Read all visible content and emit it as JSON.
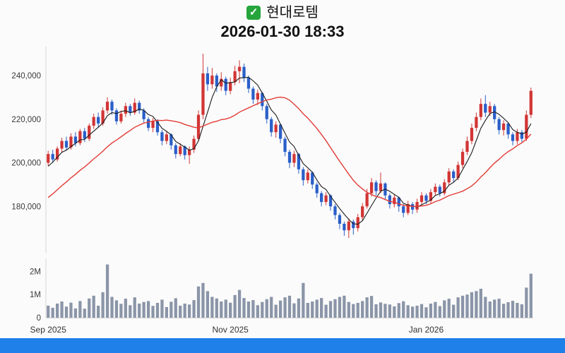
{
  "header": {
    "title": "현대로템",
    "datetime": "2026-01-30 18:33",
    "check_glyph": "✓"
  },
  "colors": {
    "candle_up": "#d23535",
    "candle_down": "#2a5fc9",
    "ma_short": "#1a1a1a",
    "ma_long": "#e23b35",
    "volume_bar": "#8b95a8",
    "axis_line": "#d6d6d6",
    "tick_text": "#3a3a3a",
    "bottom_bar": "#1e80e8",
    "background": "#fbfbfb"
  },
  "chart_data": {
    "type": "candlestick",
    "title": "현대로템",
    "subtitle": "2026-01-30 18:33",
    "y_ticks": [
      180000,
      200000,
      220000,
      240000
    ],
    "y_range": [
      160000,
      252000
    ],
    "x_axis_labels": [
      {
        "label": "Sep 2025",
        "index": 0
      },
      {
        "label": "Nov 2025",
        "index": 40
      },
      {
        "label": "Jan 2026",
        "index": 83
      }
    ],
    "volume_ticks": [
      {
        "label": "0",
        "value": 0
      },
      {
        "label": "1M",
        "value": 1000000
      },
      {
        "label": "2M",
        "value": 2000000
      }
    ],
    "volume_max": 2500000,
    "moving_averages": {
      "short_window": 5,
      "long_window": 20
    },
    "ma_short_seed_range": [
      192000,
      202000
    ],
    "ma_long_seed_range": [
      168000,
      198000
    ],
    "candles": [
      [
        200000,
        205500,
        198500,
        204000,
        520000
      ],
      [
        204000,
        206000,
        200000,
        201500,
        430000
      ],
      [
        201500,
        207500,
        200500,
        206500,
        610000
      ],
      [
        206500,
        211500,
        205000,
        210000,
        700000
      ],
      [
        210000,
        212000,
        205500,
        207000,
        480000
      ],
      [
        207000,
        213500,
        206000,
        212000,
        650000
      ],
      [
        212000,
        214000,
        207500,
        209000,
        400000
      ],
      [
        209000,
        215500,
        208000,
        214500,
        720000
      ],
      [
        214500,
        216000,
        209500,
        211000,
        390000
      ],
      [
        211000,
        218000,
        210000,
        217000,
        830000
      ],
      [
        217000,
        222500,
        215500,
        221000,
        950000
      ],
      [
        221000,
        223000,
        216000,
        218000,
        520000
      ],
      [
        218000,
        225500,
        217000,
        224000,
        1100000
      ],
      [
        224000,
        230000,
        222500,
        228000,
        2300000
      ],
      [
        228000,
        229000,
        222000,
        224000,
        900000
      ],
      [
        224000,
        225000,
        217500,
        219000,
        750000
      ],
      [
        219000,
        224000,
        218000,
        222500,
        600000
      ],
      [
        222500,
        227500,
        221000,
        226000,
        820000
      ],
      [
        226000,
        227000,
        221500,
        223000,
        540000
      ],
      [
        223000,
        229500,
        222000,
        227500,
        880000
      ],
      [
        227500,
        228500,
        222500,
        224000,
        610000
      ],
      [
        224000,
        225000,
        218500,
        220000,
        680000
      ],
      [
        220000,
        221000,
        214500,
        216000,
        720000
      ],
      [
        216000,
        220500,
        214000,
        219000,
        510000
      ],
      [
        219000,
        220000,
        212500,
        214000,
        640000
      ],
      [
        214000,
        215000,
        208000,
        210000,
        780000
      ],
      [
        210000,
        214500,
        208500,
        213000,
        460000
      ],
      [
        213000,
        213500,
        206000,
        208000,
        690000
      ],
      [
        208000,
        209000,
        202000,
        204000,
        840000
      ],
      [
        204000,
        209000,
        203000,
        207500,
        520000
      ],
      [
        207500,
        208000,
        201500,
        203500,
        610000
      ],
      [
        203500,
        207500,
        199500,
        206000,
        570000
      ],
      [
        206000,
        212500,
        204500,
        211000,
        760000
      ],
      [
        211000,
        224000,
        210000,
        222000,
        1350000
      ],
      [
        222000,
        250000,
        220000,
        241000,
        1500000
      ],
      [
        241000,
        244000,
        233000,
        236000,
        1150000
      ],
      [
        236000,
        243500,
        234000,
        240000,
        900000
      ],
      [
        240000,
        241000,
        232500,
        235000,
        830000
      ],
      [
        235000,
        241500,
        233000,
        238500,
        700000
      ],
      [
        238500,
        239500,
        231000,
        233000,
        780000
      ],
      [
        233000,
        239000,
        231500,
        237000,
        650000
      ],
      [
        237000,
        244500,
        235500,
        242000,
        980000
      ],
      [
        242000,
        247000,
        236500,
        244000,
        1200000
      ],
      [
        244000,
        245500,
        237000,
        239000,
        850000
      ],
      [
        239000,
        240000,
        232000,
        234000,
        700000
      ],
      [
        234000,
        235000,
        227000,
        229000,
        760000
      ],
      [
        229000,
        233500,
        226500,
        232000,
        540000
      ],
      [
        232000,
        232500,
        224000,
        226000,
        680000
      ],
      [
        226000,
        227000,
        218000,
        220000,
        800000
      ],
      [
        220000,
        221000,
        212000,
        214000,
        900000
      ],
      [
        214000,
        219000,
        211500,
        217500,
        560000
      ],
      [
        217500,
        218000,
        209000,
        211000,
        740000
      ],
      [
        211000,
        212000,
        203000,
        205000,
        880000
      ],
      [
        205000,
        206000,
        197500,
        200000,
        950000
      ],
      [
        200000,
        205500,
        198000,
        204000,
        620000
      ],
      [
        204000,
        204500,
        195000,
        197000,
        830000
      ],
      [
        197000,
        198000,
        189500,
        192000,
        1500000
      ],
      [
        192000,
        197000,
        190500,
        195500,
        640000
      ],
      [
        195500,
        196000,
        188000,
        190000,
        700000
      ],
      [
        190000,
        191000,
        184000,
        186000,
        780000
      ],
      [
        186000,
        187000,
        180000,
        182000,
        850000
      ],
      [
        182000,
        186500,
        180500,
        185000,
        560000
      ],
      [
        185000,
        185500,
        178000,
        180000,
        720000
      ],
      [
        180000,
        181000,
        174000,
        176000,
        800000
      ],
      [
        176000,
        177000,
        169500,
        172000,
        900000
      ],
      [
        172000,
        173000,
        166500,
        169000,
        950000
      ],
      [
        169000,
        174500,
        165500,
        173000,
        680000
      ],
      [
        173000,
        174000,
        167000,
        170000,
        590000
      ],
      [
        170000,
        176500,
        168500,
        175000,
        640000
      ],
      [
        175000,
        181500,
        173500,
        180000,
        720000
      ],
      [
        180000,
        188000,
        179000,
        186000,
        880000
      ],
      [
        186000,
        193000,
        184500,
        191000,
        940000
      ],
      [
        191000,
        192000,
        185000,
        187000,
        580000
      ],
      [
        187000,
        195500,
        186000,
        190500,
        660000
      ],
      [
        190500,
        191000,
        183000,
        185000,
        600000
      ],
      [
        185000,
        186000,
        179000,
        181000,
        570000
      ],
      [
        181000,
        185500,
        179500,
        184000,
        490000
      ],
      [
        184000,
        184500,
        177500,
        180000,
        630000
      ],
      [
        180000,
        181000,
        175000,
        177000,
        710000
      ],
      [
        177000,
        182500,
        176000,
        181000,
        540000
      ],
      [
        181000,
        182000,
        176500,
        178500,
        480000
      ],
      [
        178500,
        183500,
        177000,
        182000,
        520000
      ],
      [
        182000,
        186500,
        180500,
        185000,
        590000
      ],
      [
        185000,
        186000,
        181000,
        182500,
        450000
      ],
      [
        182500,
        188000,
        181500,
        186500,
        610000
      ],
      [
        186500,
        190500,
        185000,
        189000,
        680000
      ],
      [
        189000,
        190000,
        184500,
        186000,
        500000
      ],
      [
        186000,
        192500,
        185000,
        191000,
        750000
      ],
      [
        191000,
        197500,
        189500,
        196000,
        820000
      ],
      [
        196000,
        197000,
        191000,
        193000,
        560000
      ],
      [
        193000,
        200500,
        192000,
        199000,
        880000
      ],
      [
        199000,
        206500,
        197500,
        205000,
        950000
      ],
      [
        205000,
        212000,
        203500,
        210000,
        1000000
      ],
      [
        210000,
        218000,
        208500,
        216000,
        1100000
      ],
      [
        216000,
        223000,
        214500,
        221000,
        1150000
      ],
      [
        221000,
        229500,
        219500,
        227000,
        1250000
      ],
      [
        227000,
        231000,
        221000,
        223000,
        900000
      ],
      [
        223000,
        228000,
        221500,
        226000,
        700000
      ],
      [
        226000,
        227000,
        218000,
        220000,
        780000
      ],
      [
        220000,
        221000,
        213000,
        215000,
        820000
      ],
      [
        215000,
        219500,
        212500,
        218000,
        600000
      ],
      [
        218000,
        218500,
        211000,
        213000,
        670000
      ],
      [
        213000,
        214000,
        208000,
        210000,
        730000
      ],
      [
        210000,
        215500,
        208500,
        214000,
        640000
      ],
      [
        214000,
        215000,
        209500,
        211000,
        580000
      ],
      [
        211000,
        224000,
        210000,
        222000,
        1300000
      ],
      [
        222000,
        234500,
        220500,
        233000,
        1900000
      ]
    ]
  }
}
